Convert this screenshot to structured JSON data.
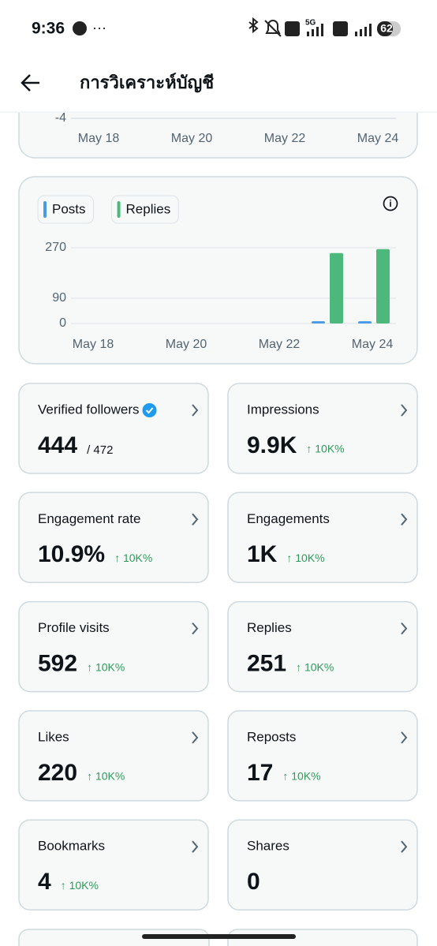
{
  "status_bar": {
    "time": "9:36",
    "network": "5G",
    "battery": "62"
  },
  "header": {
    "title": "การวิเคราะห์บัญชี"
  },
  "chart_data": [
    {
      "type": "bar",
      "categories": [
        "May 18",
        null,
        "May 20",
        null,
        "May 22",
        null,
        "May 24"
      ],
      "yticks": [
        -4
      ]
    },
    {
      "type": "bar",
      "categories": [
        "May 18",
        null,
        "May 20",
        null,
        "May 22",
        null,
        "May 24"
      ],
      "series": [
        {
          "name": "Posts",
          "color": "#4a9ae8",
          "values": [
            0,
            0,
            0,
            0,
            0,
            8,
            8
          ]
        },
        {
          "name": "Replies",
          "color": "#4cb87b",
          "values": [
            0,
            0,
            0,
            0,
            0,
            251,
            265
          ]
        }
      ],
      "ylim": [
        0,
        270
      ],
      "yticks": [
        0,
        90,
        270
      ],
      "grid": true
    }
  ],
  "metrics": [
    {
      "label": "Verified followers",
      "value": 444,
      "detail": "/ 472",
      "verified": true
    },
    {
      "label": "Impressions",
      "value": "9.9K",
      "change": "↑ 10K%"
    },
    {
      "label": "Engagement rate",
      "value": "10.9%",
      "change": "↑ 10K%"
    },
    {
      "label": "Engagements",
      "value": "1K",
      "change": "↑ 10K%"
    },
    {
      "label": "Profile visits",
      "value": 592,
      "change": "↑ 10K%"
    },
    {
      "label": "Replies",
      "value": 251,
      "change": "↑ 10K%"
    },
    {
      "label": "Likes",
      "value": 220,
      "change": "↑ 10K%"
    },
    {
      "label": "Reposts",
      "value": 17,
      "change": "↑ 10K%"
    },
    {
      "label": "Bookmarks",
      "value": 4,
      "change": "↑ 10K%"
    },
    {
      "label": "Shares",
      "value": 0
    }
  ]
}
